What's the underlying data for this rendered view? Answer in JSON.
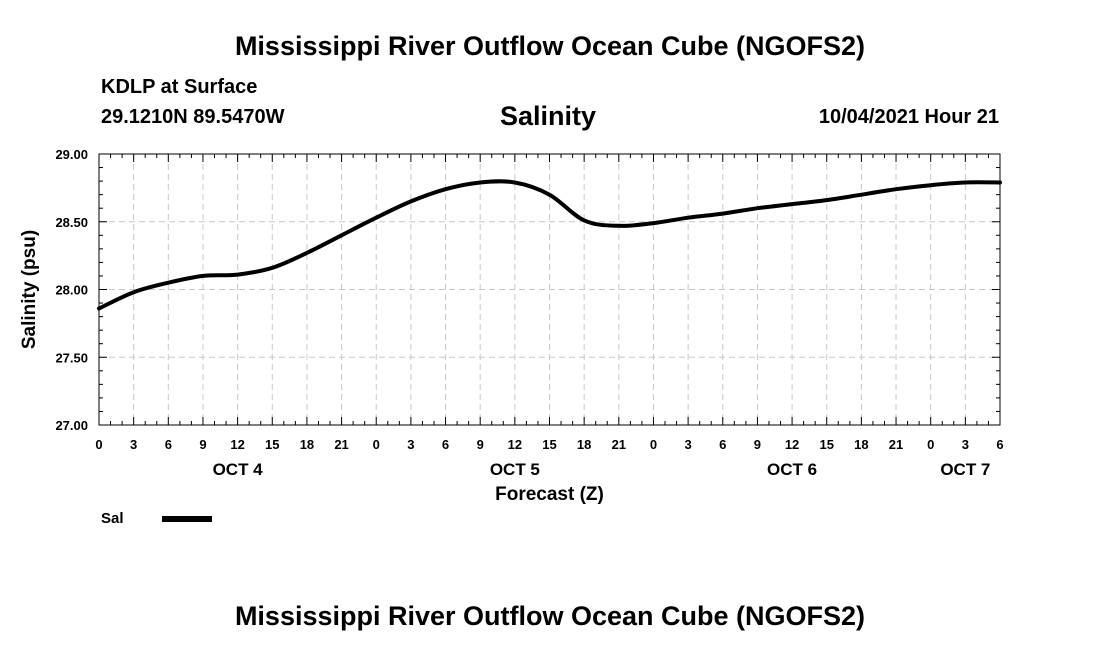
{
  "header": {
    "title": "Mississippi River Outflow Ocean Cube (NGOFS2)",
    "station": "KDLP at Surface",
    "coordinates": "29.1210N  89.5470W",
    "variable": "Salinity",
    "datetime": "10/04/2021 Hour 21"
  },
  "footer": {
    "title": "Mississippi River Outflow Ocean Cube (NGOFS2)"
  },
  "legend": {
    "label": "Sal"
  },
  "chart_data": {
    "type": "line",
    "title": "Salinity",
    "xlabel": "Forecast (Z)",
    "ylabel": "Salinity (psu)",
    "ylim": [
      27.0,
      29.0
    ],
    "xlim": [
      0,
      78
    ],
    "y_ticks": [
      "27.00",
      "27.50",
      "28.00",
      "28.50",
      "29.00"
    ],
    "x_tick_labels": [
      "0",
      "3",
      "6",
      "9",
      "12",
      "15",
      "18",
      "21",
      "0",
      "3",
      "6",
      "9",
      "12",
      "15",
      "18",
      "21",
      "0",
      "3",
      "6",
      "9",
      "12",
      "15",
      "18",
      "21",
      "0",
      "3",
      "6"
    ],
    "day_labels": [
      {
        "label": "OCT 4",
        "hour": 12
      },
      {
        "label": "OCT 5",
        "hour": 36
      },
      {
        "label": "OCT 6",
        "hour": 60
      },
      {
        "label": "OCT 7",
        "hour": 75
      }
    ],
    "grid": true,
    "series": [
      {
        "name": "Sal",
        "color": "#000000",
        "x": [
          0,
          3,
          6,
          9,
          12,
          15,
          18,
          21,
          24,
          27,
          30,
          33,
          36,
          39,
          42,
          45,
          48,
          51,
          54,
          57,
          60,
          63,
          66,
          69,
          72,
          75,
          78
        ],
        "y": [
          27.86,
          27.98,
          28.05,
          28.1,
          28.11,
          28.16,
          28.27,
          28.4,
          28.53,
          28.65,
          28.74,
          28.79,
          28.79,
          28.7,
          28.51,
          28.47,
          28.49,
          28.53,
          28.56,
          28.6,
          28.63,
          28.66,
          28.7,
          28.74,
          28.77,
          28.79,
          28.79
        ]
      }
    ]
  }
}
